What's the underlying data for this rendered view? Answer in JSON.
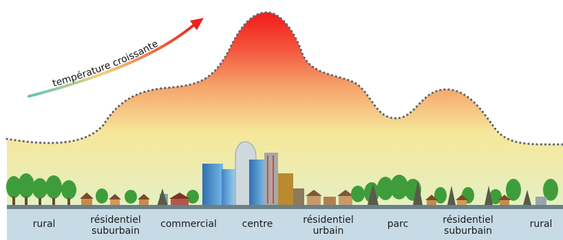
{
  "diagram": {
    "arrow_label": "température croissante",
    "colors": {
      "hot": "#f21b1b",
      "warm": "#f5a36a",
      "mild": "#f6e79a",
      "cool": "#e4f0c4",
      "ground": "#8f9ea5",
      "tree": "#3e9d3a",
      "dots": "#5c6770"
    },
    "zones": [
      {
        "id": "rural-left",
        "lines": [
          "rural"
        ]
      },
      {
        "id": "suburban-left",
        "lines": [
          "résidentiel",
          "suburbain"
        ]
      },
      {
        "id": "commercial",
        "lines": [
          "commercial"
        ]
      },
      {
        "id": "centre",
        "lines": [
          "centre"
        ]
      },
      {
        "id": "urban",
        "lines": [
          "résidentiel",
          "urbain"
        ]
      },
      {
        "id": "parc",
        "lines": [
          "parc"
        ]
      },
      {
        "id": "suburban-right",
        "lines": [
          "résidentiel",
          "suburbain"
        ]
      },
      {
        "id": "rural-right",
        "lines": [
          "rural"
        ]
      }
    ]
  }
}
